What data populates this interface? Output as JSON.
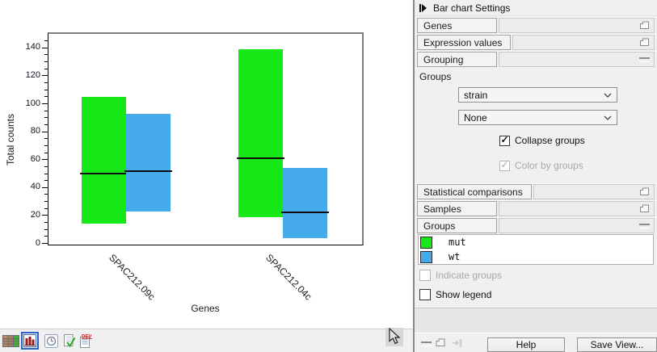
{
  "settings_panel": {
    "title": "Bar chart Settings",
    "sections": [
      {
        "label": "Genes",
        "state": "collapsed"
      },
      {
        "label": "Expression values",
        "state": "collapsed"
      },
      {
        "label": "Grouping",
        "state": "expanded"
      },
      {
        "label": "Statistical comparisons",
        "state": "collapsed"
      },
      {
        "label": "Samples",
        "state": "collapsed"
      },
      {
        "label": "Groups",
        "state": "expanded"
      }
    ],
    "grouping": {
      "groups_label": "Groups",
      "primary_group": "strain",
      "secondary_group": "None",
      "collapse_groups_label": "Collapse groups",
      "color_by_groups_label": "Color by groups"
    },
    "groups_list": [
      {
        "label": "mut",
        "color": "#16e716"
      },
      {
        "label": "wt",
        "color": "#45abeb"
      }
    ],
    "indicate_groups_label": "Indicate groups",
    "show_legend_label": "Show legend",
    "help_button": "Help",
    "save_view_button": "Save View..."
  },
  "view_toolbar": {
    "icons": [
      "table-view",
      "bar-chart-view",
      "history-view",
      "element-info-view",
      "dev-view"
    ],
    "active": "bar-chart-view",
    "dev_badge": "DEV"
  },
  "chart_data": {
    "type": "bar",
    "variant": "floating-range-bars-with-median-line",
    "title": "",
    "xlabel": "Genes",
    "ylabel": "Total counts",
    "ylim": [
      0,
      150
    ],
    "yticks": [
      0,
      20,
      40,
      60,
      80,
      100,
      120,
      140
    ],
    "minor_tick_step": 5,
    "grid": false,
    "legend_visible": false,
    "categories": [
      "SPAC212.09c",
      "SPAC212.04c"
    ],
    "series": [
      {
        "name": "mut",
        "color": "#16e716",
        "ranges": [
          [
            14,
            105
          ],
          [
            19,
            139
          ]
        ],
        "median": [
          50,
          61
        ]
      },
      {
        "name": "wt",
        "color": "#45abeb",
        "ranges": [
          [
            23,
            93
          ],
          [
            4,
            54
          ]
        ],
        "median": [
          52,
          22
        ]
      }
    ]
  }
}
